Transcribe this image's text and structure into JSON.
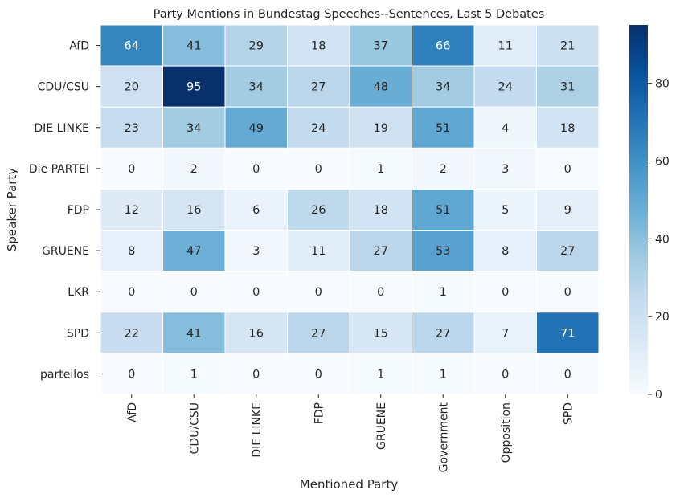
{
  "chart_data": {
    "type": "heatmap",
    "title": "Party Mentions in Bundestag Speeches--Sentences, Last 5 Debates",
    "xlabel": "Mentioned Party",
    "ylabel": "Speaker Party",
    "x_categories": [
      "AfD",
      "CDU/CSU",
      "DIE LINKE",
      "FDP",
      "GRUENE",
      "Government",
      "Opposition",
      "SPD"
    ],
    "y_categories": [
      "AfD",
      "CDU/CSU",
      "DIE LINKE",
      "Die PARTEI",
      "FDP",
      "GRUENE",
      "LKR",
      "SPD",
      "parteilos"
    ],
    "values": [
      [
        64,
        41,
        29,
        18,
        37,
        66,
        11,
        21
      ],
      [
        20,
        95,
        34,
        27,
        48,
        34,
        24,
        31
      ],
      [
        23,
        34,
        49,
        24,
        19,
        51,
        4,
        18
      ],
      [
        0,
        2,
        0,
        0,
        1,
        2,
        3,
        0
      ],
      [
        12,
        16,
        6,
        26,
        18,
        51,
        5,
        9
      ],
      [
        8,
        47,
        3,
        11,
        27,
        53,
        8,
        27
      ],
      [
        0,
        0,
        0,
        0,
        0,
        1,
        0,
        0
      ],
      [
        22,
        41,
        16,
        27,
        15,
        27,
        7,
        71
      ],
      [
        0,
        1,
        0,
        0,
        1,
        1,
        0,
        0
      ]
    ],
    "colormap": "Blues",
    "colorbar": {
      "vmin": 0,
      "vmax": 95,
      "ticks": [
        0,
        20,
        40,
        60,
        80
      ]
    },
    "annotations": true
  }
}
